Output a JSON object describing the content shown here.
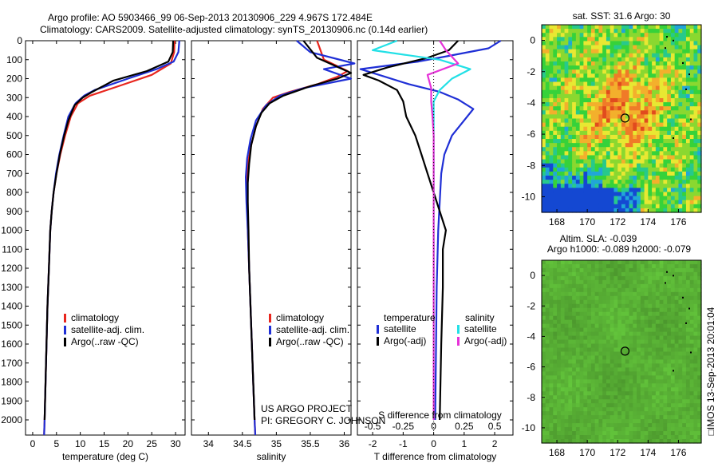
{
  "titles": {
    "line1": "Argo profile: AO 5903466_99 06-Sep-2013 20130906_229 4.967S 172.484E",
    "line2": "Climatology: CARS2009. Satellite-adjusted climatology: synTS_20130906.nc (0.14d earlier)"
  },
  "colors": {
    "clim": "#e8261e",
    "sat": "#1f2fd6",
    "argo": "#000000",
    "sal_sat": "#22e0e6",
    "sal_argo": "#e632d8"
  },
  "chart_data": [
    {
      "type": "line",
      "name": "temperature-profile",
      "xlabel": "temperature (deg C)",
      "ylabel": "",
      "xlim": [
        -1.5,
        32
      ],
      "ylim": [
        2080,
        0
      ],
      "xticks": [
        0,
        5,
        10,
        15,
        20,
        25,
        30
      ],
      "yticks": [
        0,
        100,
        200,
        300,
        400,
        500,
        600,
        700,
        800,
        900,
        1000,
        1100,
        1200,
        1300,
        1400,
        1500,
        1600,
        1700,
        1800,
        1900,
        2000
      ],
      "series": [
        {
          "name": "climatology",
          "color_key": "clim",
          "points": [
            [
              29.8,
              0
            ],
            [
              29.7,
              60
            ],
            [
              29,
              120
            ],
            [
              25,
              180
            ],
            [
              18,
              240
            ],
            [
              12,
              290
            ],
            [
              9.5,
              330
            ],
            [
              8,
              400
            ],
            [
              6.8,
              500
            ],
            [
              5.8,
              600
            ],
            [
              5,
              700
            ],
            [
              4.4,
              800
            ],
            [
              4,
              900
            ],
            [
              3.7,
              1000
            ],
            [
              3.4,
              1200
            ],
            [
              3.1,
              1400
            ],
            [
              2.9,
              1600
            ],
            [
              2.7,
              1800
            ],
            [
              2.5,
              2000
            ],
            [
              2.4,
              2080
            ]
          ]
        },
        {
          "name": "satellite-adj. clim.",
          "color_key": "sat",
          "points": [
            [
              30.8,
              0
            ],
            [
              30.6,
              60
            ],
            [
              29.6,
              110
            ],
            [
              26,
              150
            ],
            [
              20,
              200
            ],
            [
              13,
              260
            ],
            [
              10.8,
              290
            ],
            [
              9,
              330
            ],
            [
              7.5,
              400
            ],
            [
              6.5,
              500
            ],
            [
              5.6,
              600
            ],
            [
              4.9,
              700
            ],
            [
              4.4,
              800
            ],
            [
              4,
              900
            ],
            [
              3.7,
              1000
            ],
            [
              3.4,
              1200
            ],
            [
              3.1,
              1400
            ],
            [
              2.9,
              1600
            ],
            [
              2.7,
              1800
            ],
            [
              2.5,
              2000
            ],
            [
              2.4,
              2080
            ]
          ]
        },
        {
          "name": "Argo(..raw -QC)",
          "color_key": "argo",
          "points": [
            [
              29.5,
              0
            ],
            [
              29.4,
              60
            ],
            [
              28.5,
              110
            ],
            [
              24,
              160
            ],
            [
              17,
              210
            ],
            [
              12.5,
              270
            ],
            [
              10.5,
              300
            ],
            [
              8.8,
              340
            ],
            [
              7.5,
              420
            ],
            [
              6.6,
              500
            ],
            [
              5.7,
              600
            ],
            [
              5,
              700
            ],
            [
              4.4,
              800
            ],
            [
              4,
              900
            ],
            [
              3.7,
              1000
            ],
            [
              3.4,
              1200
            ],
            [
              3.1,
              1400
            ],
            [
              2.9,
              1600
            ],
            [
              2.7,
              1800
            ],
            [
              2.5,
              2000
            ]
          ]
        }
      ],
      "legend": {
        "position": "bottom-right",
        "entries": [
          "climatology",
          "satellite-adj. clim.",
          "Argo(..raw -QC)"
        ]
      }
    },
    {
      "type": "line",
      "name": "salinity-profile",
      "xlabel": "salinity",
      "ylabel": "",
      "xlim": [
        33.75,
        36.1
      ],
      "ylim": [
        2080,
        0
      ],
      "xticks": [
        34,
        34.5,
        35,
        35.5,
        36
      ],
      "series": [
        {
          "name": "climatology",
          "color_key": "clim",
          "points": [
            [
              35.6,
              0
            ],
            [
              35.7,
              100
            ],
            [
              36.05,
              160
            ],
            [
              35.9,
              190
            ],
            [
              35.6,
              230
            ],
            [
              35.2,
              270
            ],
            [
              34.95,
              300
            ],
            [
              34.8,
              360
            ],
            [
              34.7,
              450
            ],
            [
              34.63,
              550
            ],
            [
              34.58,
              650
            ],
            [
              34.56,
              750
            ],
            [
              34.57,
              850
            ],
            [
              34.58,
              1000
            ],
            [
              34.6,
              1200
            ],
            [
              34.62,
              1400
            ],
            [
              34.64,
              1600
            ],
            [
              34.66,
              1800
            ],
            [
              34.68,
              2000
            ],
            [
              34.69,
              2080
            ]
          ]
        },
        {
          "name": "satellite-adj. clim.",
          "color_key": "sat",
          "points": [
            [
              35.3,
              0
            ],
            [
              35.5,
              60
            ],
            [
              36.15,
              120
            ],
            [
              35.7,
              150
            ],
            [
              36.1,
              200
            ],
            [
              35.4,
              250
            ],
            [
              35.05,
              290
            ],
            [
              34.85,
              340
            ],
            [
              34.7,
              420
            ],
            [
              34.62,
              520
            ],
            [
              34.57,
              620
            ],
            [
              34.55,
              720
            ],
            [
              34.56,
              850
            ],
            [
              34.58,
              1000
            ],
            [
              34.6,
              1200
            ],
            [
              34.62,
              1400
            ],
            [
              34.64,
              1600
            ],
            [
              34.66,
              1800
            ],
            [
              34.68,
              2000
            ],
            [
              34.69,
              2080
            ]
          ]
        },
        {
          "name": "Argo(..raw -QC)",
          "color_key": "argo",
          "points": [
            [
              35.4,
              0
            ],
            [
              35.6,
              90
            ],
            [
              36.1,
              170
            ],
            [
              35.9,
              200
            ],
            [
              35.5,
              240
            ],
            [
              35.1,
              290
            ],
            [
              34.9,
              330
            ],
            [
              34.78,
              380
            ],
            [
              34.7,
              450
            ],
            [
              34.63,
              550
            ],
            [
              34.6,
              650
            ],
            [
              34.58,
              750
            ],
            [
              34.58,
              850
            ],
            [
              34.59,
              1000
            ],
            [
              34.6,
              1200
            ],
            [
              34.62,
              1400
            ],
            [
              34.64,
              1600
            ],
            [
              34.66,
              1800
            ],
            [
              34.68,
              2000
            ]
          ]
        }
      ],
      "legend": {
        "position": "bottom-right",
        "entries": [
          "climatology",
          "satellite-adj. clim.",
          "Argo(..raw -QC)"
        ]
      },
      "annotations": [
        "US ARGO PROJECT",
        "PI: GREGORY C. JOHNSON"
      ]
    },
    {
      "type": "line",
      "name": "difference-from-climatology",
      "xlabel": "T difference from climatology",
      "xlabel2": "S difference from climatology",
      "xlim": [
        -2.5,
        2.6
      ],
      "xticks": [
        -2,
        -1,
        0,
        1,
        2
      ],
      "x2lim": [
        -0.625,
        0.65
      ],
      "x2ticks": [
        -0.5,
        -0.25,
        0,
        0.25,
        0.5
      ],
      "x2ticklabels": [
        "-0.5",
        "-0.25",
        "0",
        "0.25",
        "0.5"
      ],
      "ylim": [
        2080,
        0
      ],
      "series": [
        {
          "name": "temperature satellite",
          "color_key": "sat",
          "axis": "T",
          "points": [
            [
              2.2,
              0
            ],
            [
              1.8,
              40
            ],
            [
              0.5,
              80
            ],
            [
              -0.5,
              110
            ],
            [
              -2.4,
              150
            ],
            [
              -1.6,
              190
            ],
            [
              -0.8,
              230
            ],
            [
              0.2,
              270
            ],
            [
              0.8,
              310
            ],
            [
              1.3,
              360
            ],
            [
              1,
              420
            ],
            [
              0.6,
              500
            ],
            [
              0.35,
              600
            ],
            [
              0.25,
              700
            ],
            [
              0.2,
              850
            ],
            [
              0.15,
              1000
            ],
            [
              0.1,
              1300
            ],
            [
              0.08,
              1600
            ],
            [
              0.05,
              2000
            ]
          ]
        },
        {
          "name": "temperature Argo(-adj)",
          "color_key": "argo",
          "axis": "T",
          "points": [
            [
              0.8,
              0
            ],
            [
              0.5,
              50
            ],
            [
              -0.2,
              90
            ],
            [
              -1.5,
              140
            ],
            [
              -2.3,
              180
            ],
            [
              -1.8,
              210
            ],
            [
              -1.2,
              260
            ],
            [
              -1,
              320
            ],
            [
              -0.9,
              400
            ],
            [
              -0.6,
              500
            ],
            [
              -0.4,
              600
            ],
            [
              -0.2,
              700
            ],
            [
              0.1,
              850
            ],
            [
              0.4,
              1000
            ],
            [
              0.3,
              1100
            ],
            [
              0.3,
              1300
            ],
            [
              0.25,
              1600
            ],
            [
              0.2,
              2000
            ]
          ]
        },
        {
          "name": "salinity satellite",
          "color_key": "sal_sat",
          "axis": "S",
          "points": [
            [
              -0.3,
              0
            ],
            [
              -0.5,
              50
            ],
            [
              0.05,
              100
            ],
            [
              0.3,
              150
            ],
            [
              0.15,
              200
            ],
            [
              0.05,
              260
            ],
            [
              0,
              320
            ],
            [
              0,
              400
            ],
            [
              0,
              500
            ],
            [
              0,
              700
            ],
            [
              0,
              900
            ],
            [
              0,
              1200
            ],
            [
              0,
              1500
            ],
            [
              0,
              2000
            ]
          ]
        },
        {
          "name": "salinity Argo(-adj)",
          "color_key": "sal_argo",
          "axis": "S",
          "points": [
            [
              0.05,
              0
            ],
            [
              0.1,
              50
            ],
            [
              0.2,
              120
            ],
            [
              -0.05,
              180
            ],
            [
              -0.02,
              250
            ],
            [
              -0.02,
              320
            ],
            [
              -0.01,
              400
            ],
            [
              0,
              500
            ],
            [
              0,
              700
            ],
            [
              0,
              900
            ],
            [
              0,
              1200
            ],
            [
              0,
              1600
            ],
            [
              0,
              2000
            ]
          ]
        }
      ],
      "legend": {
        "position": "bottom",
        "entries": [
          "temperature",
          "satellite",
          "Argo(-adj)",
          "salinity",
          "satellite",
          "Argo(-adj)"
        ]
      }
    },
    {
      "type": "heatmap",
      "name": "sst-map",
      "title": "sat. SST: 31.6 Argo: 30",
      "xlim": [
        167,
        177.5
      ],
      "ylim": [
        -11,
        1
      ],
      "xticks": [
        168,
        170,
        172,
        174,
        176
      ],
      "yticks": [
        0,
        -2,
        -4,
        -6,
        -8,
        -10
      ],
      "marker": {
        "lon": 172.484,
        "lat": -4.967
      }
    },
    {
      "type": "heatmap",
      "name": "sla-map",
      "title1": "Altim. SLA: -0.039",
      "title2": "Argo h1000: -0.089 h2000: -0.079",
      "xlim": [
        167,
        177.5
      ],
      "ylim": [
        -11,
        1
      ],
      "xticks": [
        168,
        170,
        172,
        174,
        176
      ],
      "yticks": [
        0,
        -2,
        -4,
        -6,
        -8,
        -10
      ],
      "marker": {
        "lon": 172.484,
        "lat": -4.967
      }
    }
  ],
  "side_label": "□IMOS 13-Sep-2013 20:01:04"
}
